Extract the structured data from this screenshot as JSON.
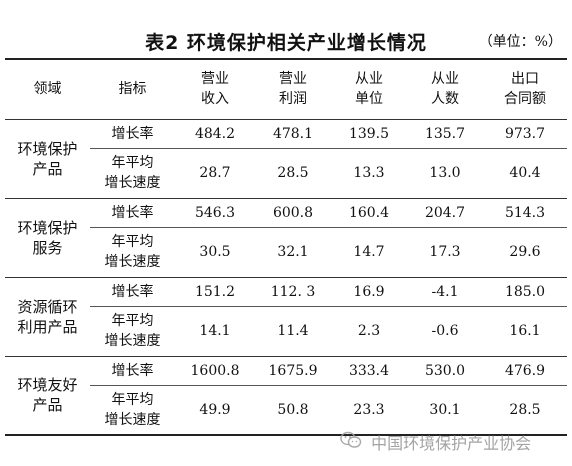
{
  "title": "表2  环境保护相关产业增长情况",
  "unit": "（单位：%）",
  "table": {
    "headers": [
      {
        "line1": "领域",
        "line2": ""
      },
      {
        "line1": "指标",
        "line2": ""
      },
      {
        "line1": "营业",
        "line2": "收入"
      },
      {
        "line1": "营业",
        "line2": "利润"
      },
      {
        "line1": "从业",
        "line2": "单位"
      },
      {
        "line1": "从业",
        "line2": "人数"
      },
      {
        "line1": "出口",
        "line2": "合同额"
      }
    ],
    "groups": [
      {
        "domain_line1": "环境保护",
        "domain_line2": "产品",
        "rows": [
          {
            "metric_line1": "增长率",
            "metric_line2": "",
            "values": [
              "484.2",
              "478.1",
              "139.5",
              "135.7",
              "973.7"
            ]
          },
          {
            "metric_line1": "年平均",
            "metric_line2": "增长速度",
            "values": [
              "28.7",
              "28.5",
              "13.3",
              "13.0",
              "40.4"
            ]
          }
        ]
      },
      {
        "domain_line1": "环境保护",
        "domain_line2": "服务",
        "rows": [
          {
            "metric_line1": "增长率",
            "metric_line2": "",
            "values": [
              "546.3",
              "600.8",
              "160.4",
              "204.7",
              "514.3"
            ]
          },
          {
            "metric_line1": "年平均",
            "metric_line2": "增长速度",
            "values": [
              "30.5",
              "32.1",
              "14.7",
              "17.3",
              "29.6"
            ]
          }
        ]
      },
      {
        "domain_line1": "资源循环",
        "domain_line2": "利用产品",
        "rows": [
          {
            "metric_line1": "增长率",
            "metric_line2": "",
            "values": [
              "151.2",
              "112. 3",
              "16.9",
              "-4.1",
              "185.0"
            ]
          },
          {
            "metric_line1": "年平均",
            "metric_line2": "增长速度",
            "values": [
              "14.1",
              "11.4",
              "2.3",
              "-0.6",
              "16.1"
            ]
          }
        ]
      },
      {
        "domain_line1": "环境友好",
        "domain_line2": "产品",
        "rows": [
          {
            "metric_line1": "增长率",
            "metric_line2": "",
            "values": [
              "1600.8",
              "1675.9",
              "333.4",
              "530.0",
              "476.9"
            ]
          },
          {
            "metric_line1": "年平均",
            "metric_line2": "增长速度",
            "values": [
              "49.9",
              "50.8",
              "23.3",
              "30.1",
              "28.5"
            ]
          }
        ]
      }
    ]
  },
  "watermark": {
    "icon": "wechat-icon",
    "text": "中国环境保护产业协会"
  }
}
